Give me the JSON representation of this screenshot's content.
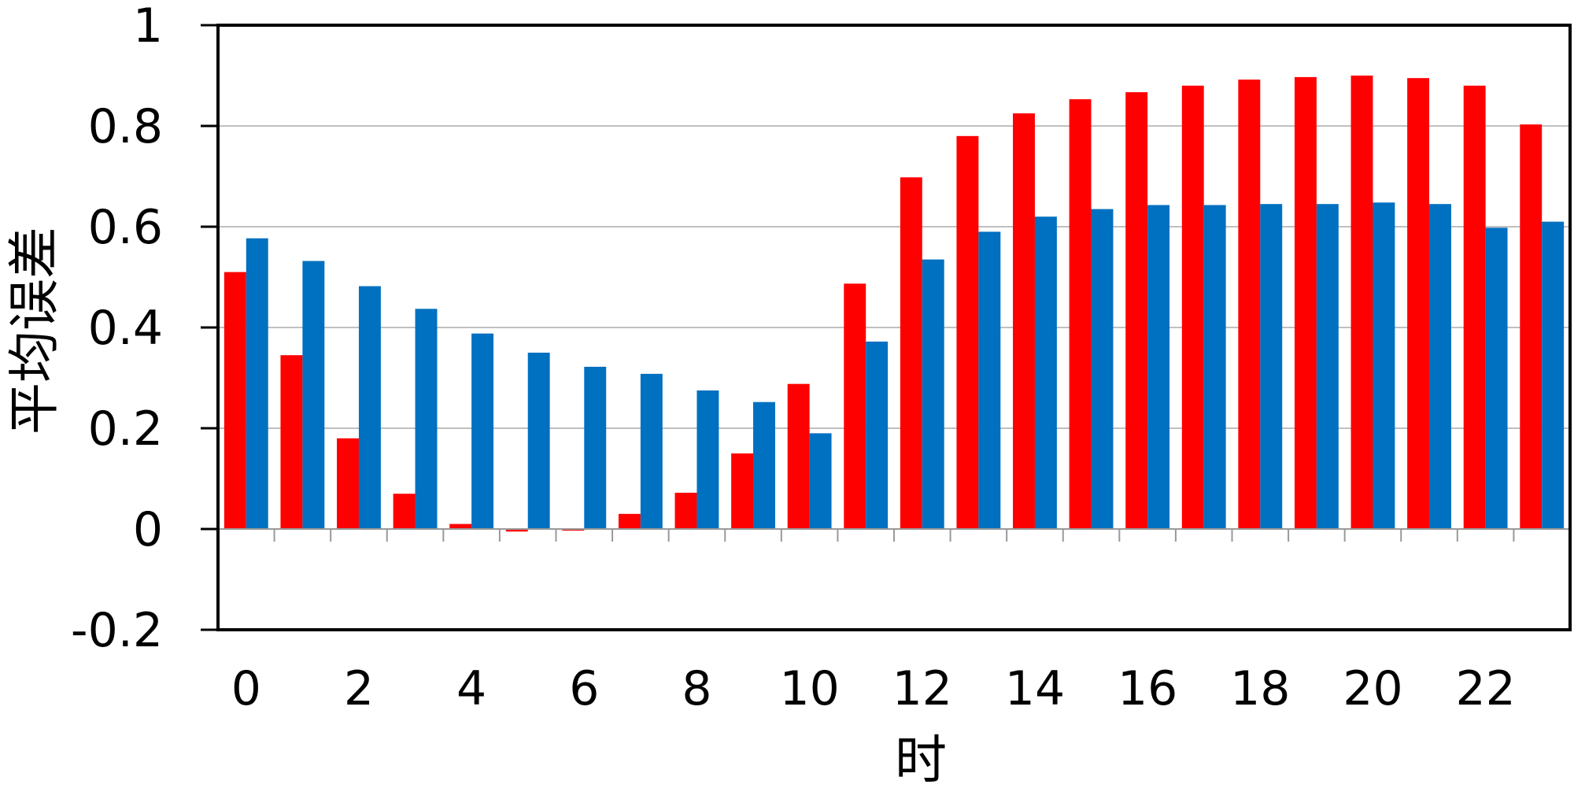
{
  "chart_data": {
    "type": "bar",
    "xlabel": "时",
    "ylabel": "平均误差",
    "ylim": [
      -0.2,
      1.0
    ],
    "yticks": [
      "-0.2",
      "0",
      "0.2",
      "0.4",
      "0.6",
      "0.8",
      "1"
    ],
    "xticks": [
      "0",
      "2",
      "4",
      "6",
      "8",
      "10",
      "12",
      "14",
      "16",
      "18",
      "20",
      "22"
    ],
    "categories": [
      0,
      1,
      2,
      3,
      4,
      5,
      6,
      7,
      8,
      9,
      10,
      11,
      12,
      13,
      14,
      15,
      16,
      17,
      18,
      19,
      20,
      21,
      22,
      23
    ],
    "grid": true,
    "legend": "none",
    "series": [
      {
        "color": "#ff0000",
        "values": [
          0.51,
          0.345,
          0.18,
          0.07,
          0.01,
          -0.005,
          -0.002,
          0.03,
          0.072,
          0.15,
          0.288,
          0.487,
          0.698,
          0.78,
          0.825,
          0.853,
          0.867,
          0.88,
          0.892,
          0.897,
          0.9,
          0.895,
          0.88,
          0.803
        ]
      },
      {
        "color": "#0070c0",
        "values": [
          0.577,
          0.532,
          0.482,
          0.437,
          0.388,
          0.35,
          0.322,
          0.308,
          0.275,
          0.252,
          0.19,
          0.372,
          0.535,
          0.59,
          0.62,
          0.635,
          0.643,
          0.643,
          0.645,
          0.645,
          0.648,
          0.645,
          0.598,
          0.61
        ]
      }
    ]
  }
}
